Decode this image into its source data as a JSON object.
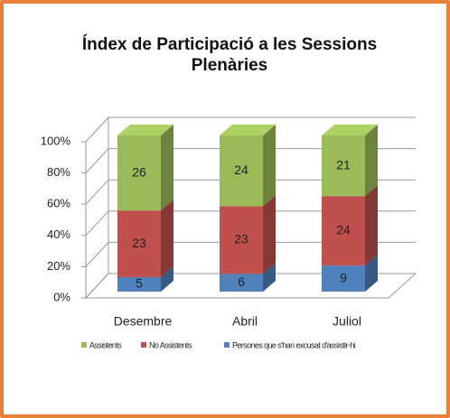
{
  "chart_data": {
    "type": "bar3d_percent_stacked",
    "title": "Índex de Participació a les Sessions Plenàries",
    "categories": [
      "Desembre",
      "Abril",
      "Juliol"
    ],
    "series": [
      {
        "name": "Persones que s'han excusat d'assistir-hi",
        "color": "#4f81bd",
        "values": [
          5,
          6,
          9
        ]
      },
      {
        "name": "No Assistents",
        "color": "#c0504d",
        "values": [
          23,
          23,
          24
        ]
      },
      {
        "name": "Assistents",
        "color": "#9bbb59",
        "values": [
          26,
          24,
          21
        ]
      }
    ],
    "percent_stacked": true,
    "ylim": [
      0,
      100
    ],
    "yticks": [
      {
        "value": 0,
        "label": "0%"
      },
      {
        "value": 20,
        "label": "20%"
      },
      {
        "value": 40,
        "label": "40%"
      },
      {
        "value": 60,
        "label": "60%"
      },
      {
        "value": 80,
        "label": "80%"
      },
      {
        "value": 100,
        "label": "100%"
      }
    ],
    "grid": true,
    "legend": "bottom"
  }
}
